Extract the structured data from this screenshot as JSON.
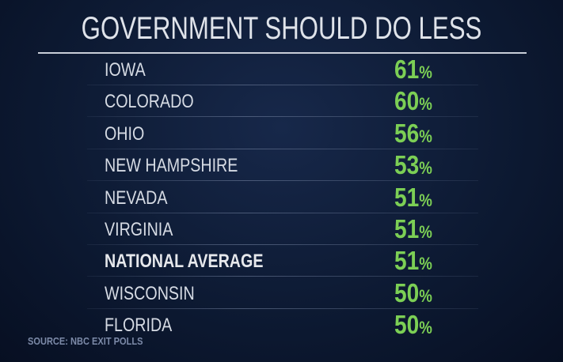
{
  "header": {
    "title": "GOVERNMENT SHOULD DO LESS"
  },
  "unit": "%",
  "table": {
    "rows": [
      {
        "label": "IOWA",
        "value": 61
      },
      {
        "label": "COLORADO",
        "value": 60
      },
      {
        "label": "OHIO",
        "value": 56
      },
      {
        "label": "NEW HAMPSHIRE",
        "value": 53
      },
      {
        "label": "NEVADA",
        "value": 51
      },
      {
        "label": "VIRGINIA",
        "value": 51
      },
      {
        "label": "NATIONAL AVERAGE",
        "value": 51,
        "highlight": true
      },
      {
        "label": "WISCONSIN",
        "value": 50
      },
      {
        "label": "FLORIDA",
        "value": 50
      }
    ]
  },
  "footer": {
    "source": "SOURCE: NBC EXIT POLLS"
  }
}
